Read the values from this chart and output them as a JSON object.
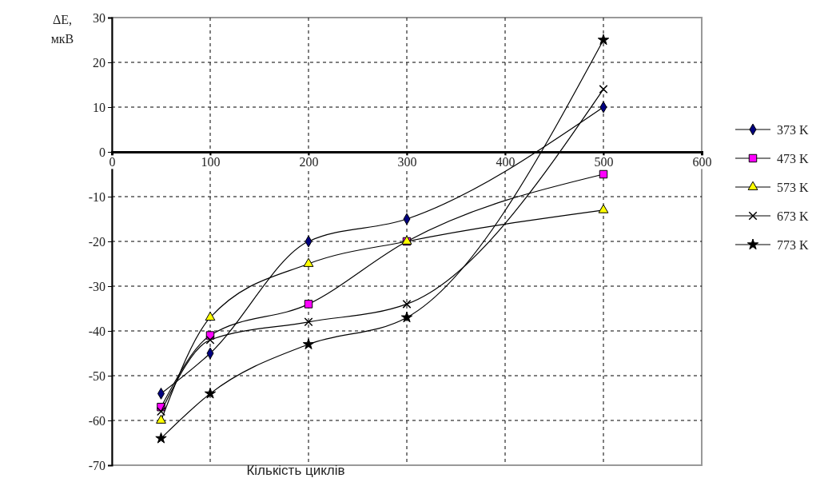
{
  "chart_data": {
    "type": "line",
    "xlabel": "Кількість циклів",
    "ylabel": "ΔE, мкВ",
    "x": [
      50,
      100,
      200,
      300,
      500
    ],
    "xlim": [
      0,
      600
    ],
    "xticks": [
      0,
      100,
      200,
      300,
      400,
      500,
      600
    ],
    "ylim": [
      -70,
      30
    ],
    "yticks": [
      -70,
      -60,
      -50,
      -40,
      -30,
      -20,
      -10,
      0,
      10,
      20,
      30
    ],
    "grid": true,
    "legend": "right",
    "series": [
      {
        "name": "373 K",
        "color": "#000080",
        "marker": "diamond",
        "values": [
          -54,
          -45,
          -20,
          -15,
          10
        ]
      },
      {
        "name": "473 K",
        "color": "#ff00ff",
        "marker": "square",
        "values": [
          -57,
          -41,
          -34,
          -20,
          -5
        ]
      },
      {
        "name": "573 K",
        "color": "#ffff00",
        "marker": "triangle",
        "values": [
          -60,
          -37,
          -25,
          -20,
          -13
        ]
      },
      {
        "name": "673 K",
        "color": "#000000",
        "marker": "cross",
        "values": [
          -58,
          -42,
          -38,
          -34,
          14
        ]
      },
      {
        "name": "773 K",
        "color": "#000000",
        "marker": "star",
        "values": [
          -64,
          -54,
          -43,
          -37,
          25
        ]
      }
    ]
  }
}
